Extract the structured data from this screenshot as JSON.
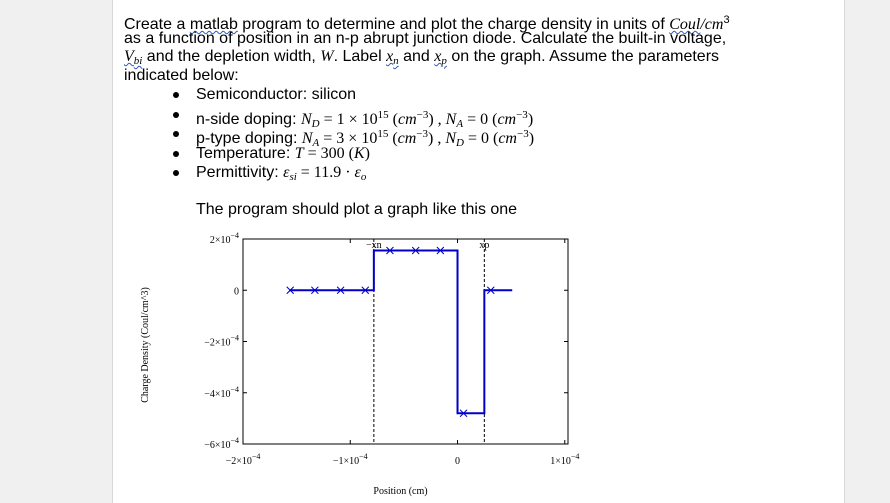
{
  "document": {
    "intro": [
      [
        {
          "text": "Create a "
        },
        {
          "text": "matlab",
          "style": "s"
        },
        {
          "text": " program to determine and plot the charge density in units of "
        },
        {
          "text": "Coul",
          "style": "m s"
        },
        {
          "text": "/cm",
          "style": "m"
        },
        {
          "text": "3",
          "style": "sup"
        }
      ],
      [
        {
          "text": "as a function of position in an n-p abrupt junction diode. Calculate the built-in voltage,"
        }
      ],
      [
        {
          "text": "V",
          "style": "m s"
        },
        {
          "text": "bi",
          "style": "m s sub"
        },
        {
          "text": " and the depletion width, "
        },
        {
          "text": "W",
          "style": "m"
        },
        {
          "text": ". Label "
        },
        {
          "text": "x",
          "style": "m s"
        },
        {
          "text": "n",
          "style": "m s sub"
        },
        {
          "text": " and "
        },
        {
          "text": "x",
          "style": "m s"
        },
        {
          "text": "p",
          "style": "m s sub"
        },
        {
          "text": " on the graph. Assume the parameters"
        }
      ],
      [
        {
          "text": "indicated below:"
        }
      ]
    ],
    "bullets": [
      [
        {
          "text": "Semiconductor: silicon"
        }
      ],
      [
        {
          "text": "n-side doping: "
        },
        {
          "text": "N",
          "style": "m"
        },
        {
          "text": "D",
          "style": "m sub"
        },
        {
          "text": " = 1 × 10",
          "style": "mr"
        },
        {
          "text": "15",
          "style": "mr sup"
        },
        {
          "text": " (",
          "style": "mr"
        },
        {
          "text": "cm",
          "style": "m"
        },
        {
          "text": "−3",
          "style": "mr sup"
        },
        {
          "text": ") , ",
          "style": "mr"
        },
        {
          "text": "N",
          "style": "m"
        },
        {
          "text": "A",
          "style": "m sub"
        },
        {
          "text": " = 0 (",
          "style": "mr"
        },
        {
          "text": "cm",
          "style": "m"
        },
        {
          "text": "−3",
          "style": "mr sup"
        },
        {
          "text": ")",
          "style": "mr"
        }
      ],
      [
        {
          "text": "p-type doping: "
        },
        {
          "text": "N",
          "style": "m"
        },
        {
          "text": "A",
          "style": "m sub"
        },
        {
          "text": " = 3 × 10",
          "style": "mr"
        },
        {
          "text": "15",
          "style": "mr sup"
        },
        {
          "text": " (",
          "style": "mr"
        },
        {
          "text": "cm",
          "style": "m"
        },
        {
          "text": "−3",
          "style": "mr sup"
        },
        {
          "text": ") , ",
          "style": "mr"
        },
        {
          "text": "N",
          "style": "m"
        },
        {
          "text": "D",
          "style": "m sub"
        },
        {
          "text": " = 0 (",
          "style": "mr"
        },
        {
          "text": "cm",
          "style": "m"
        },
        {
          "text": "−3",
          "style": "mr sup"
        },
        {
          "text": ")",
          "style": "mr"
        }
      ],
      [
        {
          "text": "Temperature: "
        },
        {
          "text": "T",
          "style": "m"
        },
        {
          "text": " = 300 (",
          "style": "mr"
        },
        {
          "text": "K",
          "style": "m"
        },
        {
          "text": ")",
          "style": "mr"
        }
      ],
      [
        {
          "text": "Permittivity: "
        },
        {
          "text": "ε",
          "style": "m"
        },
        {
          "text": "si",
          "style": "m sub"
        },
        {
          "text": " = 11.9 · ",
          "style": "mr"
        },
        {
          "text": "ε",
          "style": "m"
        },
        {
          "text": "o",
          "style": "m sub"
        }
      ]
    ],
    "lead": "The program should plot a graph like this one"
  },
  "chart_data": {
    "type": "line",
    "xlabel": "Position (cm)",
    "ylabel": "Charge Density (Coul/cm^3)",
    "xlim": [
      -0.0002,
      0.000103
    ],
    "ylim": [
      -0.0006,
      0.0002
    ],
    "xticks": [
      {
        "value": -0.0002,
        "label": "−2×10",
        "exponent": "−4"
      },
      {
        "value": -0.0001,
        "label": "−1×10",
        "exponent": "−4"
      },
      0,
      {
        "value": 0.0001,
        "label": "1×10",
        "exponent": "−4"
      }
    ],
    "yticks": [
      {
        "value": 0.0002,
        "label": "2×10",
        "exponent": "−4"
      },
      0,
      {
        "value": -0.0002,
        "label": "−2×10",
        "exponent": "−4"
      },
      {
        "value": -0.0004,
        "label": "−4×10",
        "exponent": "−4"
      },
      {
        "value": -0.0006,
        "label": "−6×10",
        "exponent": "−4"
      }
    ],
    "series": [
      {
        "color": "#0000c8",
        "line": true,
        "x": [
          -0.000157,
          -7.8e-05,
          -7.8e-05,
          0,
          0,
          2.5e-05,
          2.5e-05,
          5.1e-05
        ],
        "values": [
          0,
          0,
          0.000155,
          0.000155,
          -0.00048,
          -0.00048,
          0,
          0
        ]
      },
      {
        "color": "#0000c8",
        "marker": "x",
        "line": false,
        "x": [
          -0.000156,
          -0.000133,
          -0.000109,
          -8.6e-05,
          -6.3e-05,
          -3.9e-05,
          -1.6e-05,
          5.6e-06,
          3.1e-05
        ],
        "values": [
          0,
          0,
          0,
          0,
          0.000155,
          0.000155,
          0.000155,
          -0.00048,
          0
        ]
      }
    ],
    "annotations": [
      {
        "text": "−xn",
        "x": -7.8e-05
      },
      {
        "text": "xp",
        "x": 2.5e-05
      }
    ]
  }
}
